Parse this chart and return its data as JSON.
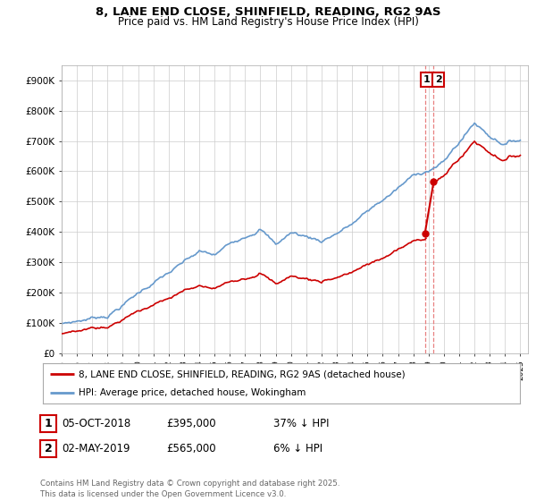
{
  "title_line1": "8, LANE END CLOSE, SHINFIELD, READING, RG2 9AS",
  "title_line2": "Price paid vs. HM Land Registry's House Price Index (HPI)",
  "red_label": "8, LANE END CLOSE, SHINFIELD, READING, RG2 9AS (detached house)",
  "blue_label": "HPI: Average price, detached house, Wokingham",
  "transaction1_num": "1",
  "transaction1_date": "05-OCT-2018",
  "transaction1_price": "£395,000",
  "transaction1_hpi": "37% ↓ HPI",
  "transaction2_num": "2",
  "transaction2_date": "02-MAY-2019",
  "transaction2_price": "£565,000",
  "transaction2_hpi": "6% ↓ HPI",
  "footer": "Contains HM Land Registry data © Crown copyright and database right 2025.\nThis data is licensed under the Open Government Licence v3.0.",
  "ylim": [
    0,
    950000
  ],
  "yticks": [
    0,
    100000,
    200000,
    300000,
    400000,
    500000,
    600000,
    700000,
    800000,
    900000
  ],
  "ytick_labels": [
    "£0",
    "£100K",
    "£200K",
    "£300K",
    "£400K",
    "£500K",
    "£600K",
    "£700K",
    "£800K",
    "£900K"
  ],
  "red_color": "#cc0000",
  "blue_color": "#6699cc",
  "dashed_color": "#e88080",
  "background_color": "#ffffff",
  "grid_color": "#cccccc",
  "t1_year": 2018.76,
  "t1_price": 395000,
  "t2_year": 2019.33,
  "t2_price": 565000,
  "xlim_left": 1995,
  "xlim_right": 2025.5
}
